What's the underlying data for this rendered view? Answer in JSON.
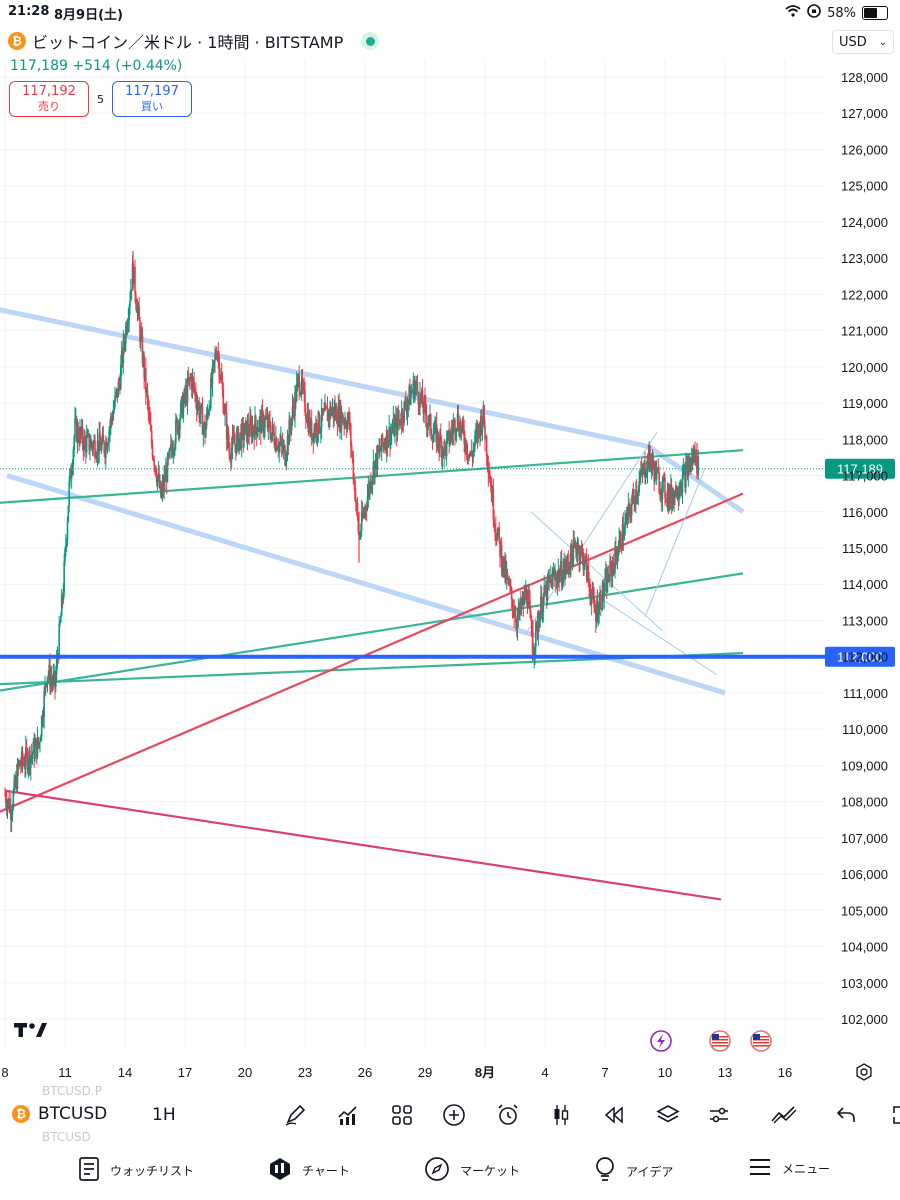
{
  "status_bar": {
    "time": "21:28",
    "date": "8月9日(土)",
    "battery": "58%"
  },
  "header": {
    "coin_symbol": "₿",
    "title": "ビットコイン／米ドル · 1時間 · BITSTAMP",
    "currency": "USD",
    "price": "117,189",
    "change": "+514",
    "change_pct": "(+0.44%)",
    "sell_price": "117,192",
    "sell_label": "売り",
    "spread": "5",
    "buy_price": "117,197",
    "buy_label": "買い"
  },
  "chart_data": {
    "type": "candlestick",
    "symbol": "BTCUSD",
    "interval": "1H",
    "exchange": "BITSTAMP",
    "y_ticks": [
      "128,000",
      "127,000",
      "126,000",
      "125,000",
      "124,000",
      "123,000",
      "122,000",
      "121,000",
      "120,000",
      "119,000",
      "118,000",
      "117,000",
      "116,000",
      "115,000",
      "114,000",
      "113,000",
      "112,000",
      "111,000",
      "110,000",
      "109,000",
      "108,000",
      "107,000",
      "106,000",
      "105,000",
      "104,000",
      "103,000",
      "102,000"
    ],
    "x_ticks": [
      "8",
      "11",
      "14",
      "17",
      "20",
      "23",
      "26",
      "29",
      "8月",
      "4",
      "7",
      "10",
      "13",
      "16"
    ],
    "ylim": [
      101500,
      128500
    ],
    "last_price": 117189,
    "last_price_label": "117,189",
    "horizontal_level": 112000,
    "horizontal_level_label": "112,000",
    "price_path": [
      {
        "d": 8.0,
        "p": 108200
      },
      {
        "d": 8.3,
        "p": 107800
      },
      {
        "d": 8.7,
        "p": 109000
      },
      {
        "d": 9.3,
        "p": 109300
      },
      {
        "d": 9.7,
        "p": 109600
      },
      {
        "d": 10.1,
        "p": 111600
      },
      {
        "d": 10.5,
        "p": 111200
      },
      {
        "d": 10.9,
        "p": 113800
      },
      {
        "d": 11.2,
        "p": 116600
      },
      {
        "d": 11.5,
        "p": 118300
      },
      {
        "d": 12.0,
        "p": 117900
      },
      {
        "d": 13.0,
        "p": 117800
      },
      {
        "d": 13.7,
        "p": 119500
      },
      {
        "d": 14.4,
        "p": 122700
      },
      {
        "d": 14.9,
        "p": 120200
      },
      {
        "d": 15.3,
        "p": 118000
      },
      {
        "d": 15.8,
        "p": 116400
      },
      {
        "d": 16.6,
        "p": 118400
      },
      {
        "d": 17.3,
        "p": 119700
      },
      {
        "d": 18.0,
        "p": 118200
      },
      {
        "d": 18.6,
        "p": 120600
      },
      {
        "d": 19.2,
        "p": 117700
      },
      {
        "d": 20.0,
        "p": 118200
      },
      {
        "d": 21.0,
        "p": 118500
      },
      {
        "d": 22.0,
        "p": 117600
      },
      {
        "d": 22.7,
        "p": 119700
      },
      {
        "d": 23.3,
        "p": 118200
      },
      {
        "d": 24.3,
        "p": 118800
      },
      {
        "d": 25.2,
        "p": 118500
      },
      {
        "d": 25.7,
        "p": 115300
      },
      {
        "d": 26.4,
        "p": 117200
      },
      {
        "d": 27.0,
        "p": 118000
      },
      {
        "d": 27.6,
        "p": 118400
      },
      {
        "d": 28.5,
        "p": 119500
      },
      {
        "d": 29.3,
        "p": 118300
      },
      {
        "d": 30.0,
        "p": 117700
      },
      {
        "d": 30.6,
        "p": 118600
      },
      {
        "d": 31.3,
        "p": 117500
      },
      {
        "d": 31.9,
        "p": 118700
      },
      {
        "d": 32.2,
        "p": 117200
      },
      {
        "d": 32.5,
        "p": 115700
      },
      {
        "d": 33.0,
        "p": 114300
      },
      {
        "d": 33.6,
        "p": 113000
      },
      {
        "d": 34.1,
        "p": 113800
      },
      {
        "d": 34.4,
        "p": 112200
      },
      {
        "d": 34.8,
        "p": 113400
      },
      {
        "d": 35.3,
        "p": 114100
      },
      {
        "d": 36.0,
        "p": 114400
      },
      {
        "d": 36.6,
        "p": 115100
      },
      {
        "d": 37.0,
        "p": 114600
      },
      {
        "d": 37.5,
        "p": 113200
      },
      {
        "d": 38.0,
        "p": 113900
      },
      {
        "d": 38.5,
        "p": 114700
      },
      {
        "d": 39.0,
        "p": 115600
      },
      {
        "d": 39.5,
        "p": 116500
      },
      {
        "d": 40.2,
        "p": 117500
      },
      {
        "d": 40.8,
        "p": 116700
      },
      {
        "d": 41.3,
        "p": 116400
      },
      {
        "d": 41.9,
        "p": 116900
      },
      {
        "d": 42.5,
        "p": 117600
      },
      {
        "d": 42.7,
        "p": 117189
      }
    ],
    "trendlines": [
      {
        "name": "upper-channel",
        "color": "#bbd6f6",
        "points": [
          [
            -11.4,
            123800
          ],
          [
            40.2,
            117800
          ],
          [
            44.9,
            116000
          ]
        ]
      },
      {
        "name": "lower-channel",
        "color": "#bbd6f6",
        "points": [
          [
            8.1,
            117000
          ],
          [
            44.0,
            111000
          ]
        ]
      },
      {
        "name": "green-1",
        "color": "#3bb597",
        "points": [
          [
            -11.4,
            115500
          ],
          [
            44.9,
            117700
          ]
        ]
      },
      {
        "name": "green-2",
        "color": "#3bb597",
        "points": [
          [
            -11.4,
            109400
          ],
          [
            44.9,
            114300
          ]
        ]
      },
      {
        "name": "green-3",
        "color": "#3bb597",
        "points": [
          [
            -11.4,
            110800
          ],
          [
            44.9,
            112100
          ]
        ]
      },
      {
        "name": "red-up",
        "color": "#e8485c",
        "points": [
          [
            -11.4,
            103200
          ],
          [
            44.9,
            116500
          ]
        ]
      },
      {
        "name": "pink-down",
        "color": "#d94270",
        "points": [
          [
            8.0,
            108300
          ],
          [
            43.8,
            105300
          ]
        ]
      }
    ]
  },
  "toolbar": {
    "coin_symbol": "₿",
    "symbol": "BTCUSD",
    "interval": "1H",
    "ghost_symbol_1": "BTCUSD.P",
    "ghost_symbol_2": "BTCUSD"
  },
  "bottom_nav": [
    {
      "label": "ウォッチリスト",
      "icon": "watchlist-icon"
    },
    {
      "label": "チャート",
      "icon": "chart-icon"
    },
    {
      "label": "マーケット",
      "icon": "compass-icon"
    },
    {
      "label": "アイデア",
      "icon": "lightbulb-icon"
    },
    {
      "label": "メニュー",
      "icon": "menu-icon"
    }
  ],
  "colors": {
    "up": "#089981",
    "down": "#f23645",
    "accent": "#2962ff",
    "level": "#2962ff"
  }
}
